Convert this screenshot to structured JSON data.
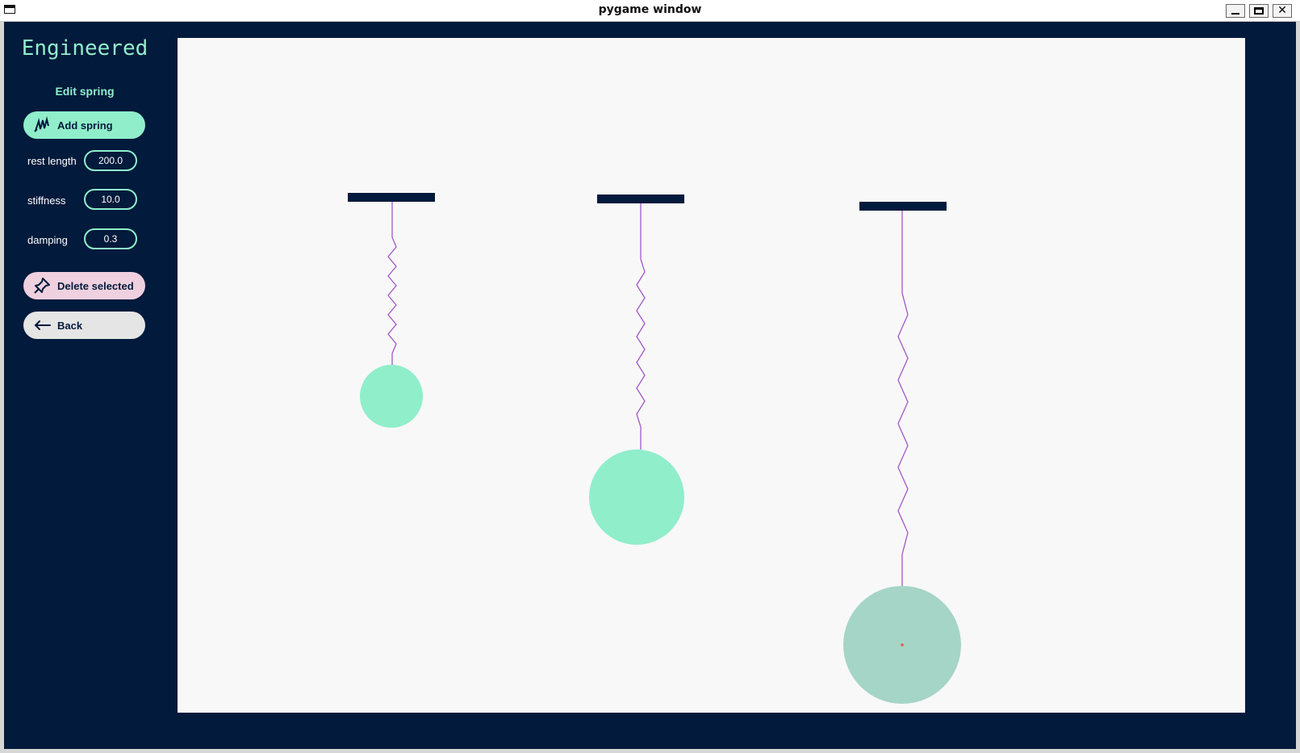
{
  "window": {
    "title": "pygame window",
    "controls": {
      "minimize_icon": "minimize-icon",
      "maximize_icon": "maximize-icon",
      "close_label": "✕"
    }
  },
  "sidebar": {
    "logo": "Engineered",
    "section_label": "Edit spring",
    "add_button": {
      "label": "Add spring",
      "icon": "spring-icon"
    },
    "params": [
      {
        "label": "rest length",
        "value": "200.0"
      },
      {
        "label": "stiffness",
        "value": "10.0"
      },
      {
        "label": "damping",
        "value": "0.3"
      }
    ],
    "delete_button": {
      "label": "Delete selected",
      "icon": "pin-icon"
    },
    "back_button": {
      "label": "Back",
      "icon": "arrow-left-icon"
    }
  },
  "colors": {
    "sidebar_bg": "#021a3b",
    "accent": "#90eecb",
    "canvas_bg": "#f8f8f8",
    "spring": "#a357c7",
    "anchor": "#021a3b",
    "selected_mass": "#a5d5c6",
    "mass": "#90eecb",
    "center_dot": "#e25a4a"
  }
}
